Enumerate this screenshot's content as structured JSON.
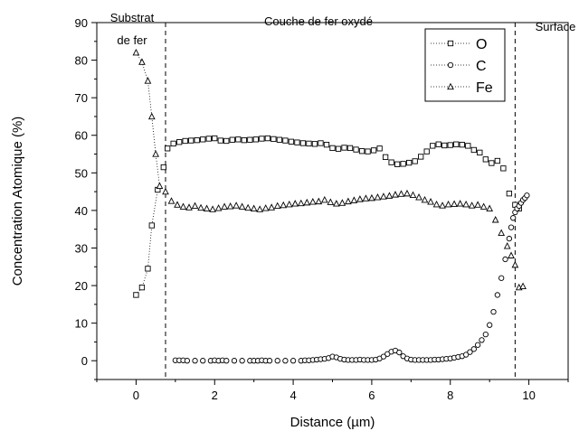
{
  "chart_data": {
    "type": "scatter",
    "title": "",
    "xlabel": "Distance (µm)",
    "ylabel": "Concentration Atomique (%)",
    "xlim": [
      -1,
      11
    ],
    "ylim": [
      -5,
      90
    ],
    "x_ticks": [
      0,
      2,
      4,
      6,
      8,
      10
    ],
    "y_ticks": [
      0,
      10,
      20,
      30,
      40,
      50,
      60,
      70,
      80,
      90
    ],
    "grid": false,
    "legend_position": "top-right",
    "annotations": [
      {
        "text": "Substrat",
        "x": 0.0
      },
      {
        "text": "de fer",
        "x": 0.0
      },
      {
        "text": "Couche de fer oxydé",
        "x": 5.2
      },
      {
        "text": "Surface",
        "x": 10.5
      }
    ],
    "vlines": [
      0.75,
      9.65
    ],
    "series": [
      {
        "name": "O",
        "marker": "square",
        "x": [
          0.0,
          0.15,
          0.3,
          0.4,
          0.55,
          0.7,
          0.8,
          0.95,
          1.1,
          1.25,
          1.4,
          1.55,
          1.7,
          1.85,
          2.0,
          2.15,
          2.3,
          2.45,
          2.6,
          2.75,
          2.9,
          3.05,
          3.2,
          3.35,
          3.5,
          3.65,
          3.8,
          3.95,
          4.1,
          4.25,
          4.4,
          4.55,
          4.7,
          4.85,
          5.0,
          5.15,
          5.3,
          5.45,
          5.6,
          5.75,
          5.9,
          6.05,
          6.2,
          6.35,
          6.5,
          6.65,
          6.8,
          6.95,
          7.1,
          7.25,
          7.4,
          7.55,
          7.7,
          7.85,
          8.0,
          8.15,
          8.3,
          8.45,
          8.6,
          8.75,
          8.9,
          9.05,
          9.2,
          9.35,
          9.5,
          9.65,
          9.75
        ],
        "y": [
          17.5,
          19.5,
          24.5,
          36.0,
          45.5,
          51.5,
          56.5,
          57.8,
          58.2,
          58.5,
          58.6,
          58.7,
          58.9,
          59.1,
          59.2,
          58.6,
          58.5,
          58.8,
          58.9,
          58.7,
          58.8,
          58.9,
          59.1,
          59.2,
          59.0,
          58.8,
          58.6,
          58.3,
          58.1,
          57.9,
          57.8,
          57.7,
          57.9,
          57.5,
          56.6,
          56.4,
          56.7,
          56.6,
          56.2,
          55.8,
          55.7,
          56.0,
          56.5,
          54.2,
          52.8,
          52.3,
          52.4,
          52.7,
          53.1,
          54.3,
          55.7,
          57.2,
          57.6,
          57.3,
          57.4,
          57.6,
          57.5,
          57.2,
          56.1,
          55.4,
          53.6,
          52.6,
          53.2,
          51.2,
          44.5,
          41.5,
          40.5
        ]
      },
      {
        "name": "C",
        "marker": "circle",
        "x": [
          1.0,
          1.1,
          1.2,
          1.3,
          1.5,
          1.7,
          1.9,
          2.0,
          2.1,
          2.2,
          2.3,
          2.5,
          2.7,
          2.9,
          3.0,
          3.1,
          3.2,
          3.3,
          3.4,
          3.6,
          3.8,
          4.0,
          4.2,
          4.3,
          4.4,
          4.5,
          4.6,
          4.7,
          4.8,
          4.9,
          5.0,
          5.1,
          5.2,
          5.3,
          5.4,
          5.5,
          5.6,
          5.7,
          5.8,
          5.9,
          6.0,
          6.1,
          6.2,
          6.3,
          6.4,
          6.5,
          6.6,
          6.7,
          6.8,
          6.9,
          7.0,
          7.1,
          7.2,
          7.3,
          7.4,
          7.5,
          7.6,
          7.7,
          7.8,
          7.9,
          8.0,
          8.1,
          8.2,
          8.3,
          8.4,
          8.5,
          8.6,
          8.7,
          8.8,
          8.9,
          9.0,
          9.1,
          9.2,
          9.3,
          9.4,
          9.5,
          9.55,
          9.6,
          9.65,
          9.7,
          9.75,
          9.8,
          9.85,
          9.9,
          9.95
        ],
        "y": [
          0.1,
          0.1,
          0.1,
          0.0,
          0.0,
          0.0,
          0.0,
          0.1,
          0.0,
          0.1,
          0.0,
          0.0,
          0.0,
          0.0,
          0.0,
          0.0,
          0.1,
          0.0,
          0.0,
          0.0,
          0.0,
          0.0,
          0.0,
          0.1,
          0.1,
          0.2,
          0.3,
          0.4,
          0.5,
          0.7,
          1.1,
          0.9,
          0.5,
          0.3,
          0.2,
          0.2,
          0.2,
          0.3,
          0.2,
          0.2,
          0.2,
          0.3,
          0.6,
          1.1,
          1.8,
          2.4,
          2.7,
          2.2,
          1.2,
          0.6,
          0.3,
          0.2,
          0.2,
          0.2,
          0.2,
          0.2,
          0.3,
          0.3,
          0.4,
          0.5,
          0.6,
          0.8,
          1.0,
          1.2,
          1.6,
          2.3,
          3.1,
          4.2,
          5.5,
          7.0,
          9.5,
          13.0,
          17.5,
          22.0,
          27.0,
          32.5,
          35.5,
          38.0,
          39.5,
          40.5,
          41.2,
          42.0,
          42.8,
          43.3,
          44.0
        ]
      },
      {
        "name": "Fe",
        "marker": "triangle",
        "x": [
          0.0,
          0.15,
          0.3,
          0.4,
          0.5,
          0.6,
          0.75,
          0.9,
          1.05,
          1.2,
          1.35,
          1.5,
          1.65,
          1.8,
          1.95,
          2.1,
          2.25,
          2.4,
          2.55,
          2.7,
          2.85,
          3.0,
          3.15,
          3.3,
          3.45,
          3.6,
          3.75,
          3.9,
          4.05,
          4.2,
          4.35,
          4.5,
          4.65,
          4.8,
          4.95,
          5.1,
          5.25,
          5.4,
          5.55,
          5.7,
          5.85,
          6.0,
          6.15,
          6.3,
          6.45,
          6.6,
          6.75,
          6.9,
          7.05,
          7.2,
          7.35,
          7.5,
          7.65,
          7.8,
          7.95,
          8.1,
          8.25,
          8.4,
          8.55,
          8.7,
          8.85,
          9.0,
          9.15,
          9.3,
          9.45,
          9.55,
          9.65,
          9.75,
          9.85
        ],
        "y": [
          82.0,
          79.5,
          74.5,
          65.0,
          55.0,
          46.5,
          45.0,
          42.5,
          41.5,
          41.0,
          40.8,
          41.2,
          40.7,
          40.5,
          40.3,
          40.6,
          41.0,
          41.1,
          41.3,
          41.0,
          40.7,
          40.5,
          40.3,
          40.6,
          40.8,
          41.2,
          41.4,
          41.6,
          41.8,
          41.9,
          42.1,
          42.3,
          42.4,
          42.8,
          42.2,
          41.8,
          42.0,
          42.4,
          42.7,
          43.0,
          43.2,
          43.3,
          43.5,
          43.7,
          43.9,
          44.2,
          44.4,
          44.5,
          44.1,
          43.5,
          42.8,
          42.3,
          41.6,
          41.3,
          41.6,
          41.7,
          41.8,
          41.6,
          41.3,
          41.5,
          41.0,
          40.5,
          37.5,
          34.0,
          30.5,
          28.0,
          25.5,
          19.5,
          19.8
        ]
      }
    ]
  }
}
